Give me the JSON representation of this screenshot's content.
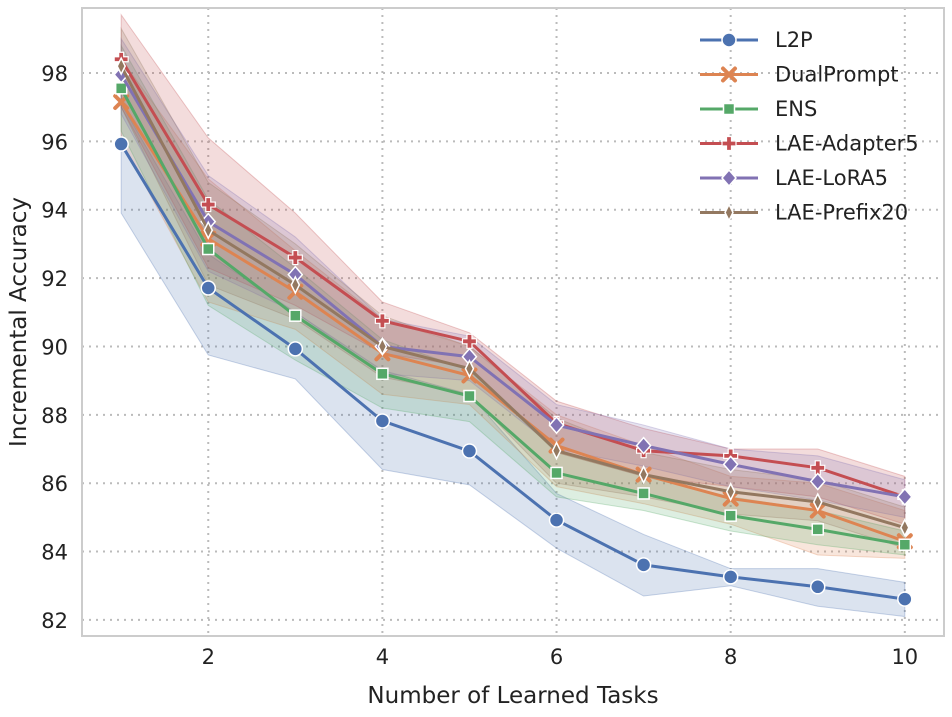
{
  "chart_data": {
    "type": "line",
    "title": "",
    "xlabel": "Number of Learned Tasks",
    "ylabel": "Incremental Accuracy",
    "xlim": [
      0.55,
      10.45
    ],
    "ylim": [
      81.53,
      99.9
    ],
    "xticks": [
      2,
      4,
      6,
      8,
      10
    ],
    "yticks": [
      82,
      84,
      86,
      88,
      90,
      92,
      94,
      96,
      98
    ],
    "grid": true,
    "legend_position": "top-right",
    "x": [
      1,
      2,
      3,
      4,
      5,
      6,
      7,
      8,
      9,
      10
    ],
    "series": [
      {
        "name": "L2P",
        "color": "#4c72b0",
        "marker": "circle",
        "values": [
          95.92,
          91.71,
          89.93,
          87.82,
          86.94,
          84.92,
          83.61,
          83.26,
          82.97,
          82.61
        ],
        "ci_lower": [
          93.9,
          89.75,
          89.05,
          86.4,
          85.95,
          84.1,
          82.7,
          83.0,
          82.4,
          82.1
        ],
        "ci_upper": [
          97.1,
          92.7,
          91.0,
          89.3,
          88.6,
          85.7,
          84.5,
          83.5,
          83.5,
          83.1
        ]
      },
      {
        "name": "DualPrompt",
        "color": "#dd8452",
        "marker": "x",
        "values": [
          97.15,
          93.15,
          91.6,
          89.8,
          89.15,
          87.1,
          86.25,
          85.55,
          85.2,
          84.3
        ],
        "ci_lower": [
          96.0,
          91.3,
          90.5,
          88.6,
          88.3,
          85.9,
          85.4,
          84.8,
          83.9,
          83.8
        ],
        "ci_upper": [
          98.4,
          94.9,
          92.8,
          90.8,
          90.0,
          88.0,
          87.1,
          86.2,
          86.0,
          85.2
        ]
      },
      {
        "name": "ENS",
        "color": "#55a868",
        "marker": "square",
        "values": [
          97.55,
          92.85,
          90.9,
          89.2,
          88.55,
          86.3,
          85.7,
          85.05,
          84.65,
          84.2
        ],
        "ci_lower": [
          96.3,
          91.2,
          89.6,
          88.2,
          87.8,
          85.6,
          85.2,
          84.6,
          84.2,
          83.9
        ],
        "ci_upper": [
          98.8,
          94.3,
          92.3,
          90.2,
          89.3,
          86.9,
          86.2,
          85.6,
          85.2,
          84.6
        ]
      },
      {
        "name": "LAE-Adapter5",
        "color": "#c44e52",
        "marker": "plus",
        "values": [
          98.4,
          94.15,
          92.6,
          90.75,
          90.15,
          87.75,
          86.95,
          86.8,
          86.45,
          85.6
        ],
        "ci_lower": [
          97.0,
          92.3,
          91.2,
          89.8,
          89.4,
          86.9,
          86.2,
          85.9,
          85.6,
          84.8
        ],
        "ci_upper": [
          99.7,
          96.1,
          93.9,
          91.3,
          90.4,
          88.4,
          87.6,
          87.0,
          87.0,
          86.2
        ]
      },
      {
        "name": "LAE-LoRA5",
        "color": "#8172b3",
        "marker": "diamond",
        "values": [
          97.95,
          93.65,
          92.1,
          90.0,
          89.7,
          87.7,
          87.1,
          86.55,
          86.05,
          85.6
        ],
        "ci_lower": [
          96.8,
          92.2,
          91.0,
          89.2,
          89.0,
          87.0,
          86.5,
          85.9,
          85.5,
          85.0
        ],
        "ci_upper": [
          99.0,
          95.0,
          93.2,
          90.8,
          90.3,
          88.3,
          87.7,
          87.0,
          86.8,
          86.1
        ]
      },
      {
        "name": "LAE-Prefix20",
        "color": "#937860",
        "marker": "thin_diamond",
        "values": [
          98.2,
          93.4,
          91.8,
          90.0,
          89.35,
          86.95,
          86.25,
          85.75,
          85.45,
          84.7
        ],
        "ci_lower": [
          97.0,
          91.8,
          90.8,
          89.1,
          88.6,
          86.0,
          85.6,
          85.1,
          84.9,
          84.1
        ],
        "ci_upper": [
          99.3,
          94.8,
          93.0,
          90.9,
          90.0,
          87.9,
          86.9,
          86.4,
          86.1,
          85.3
        ]
      }
    ]
  }
}
